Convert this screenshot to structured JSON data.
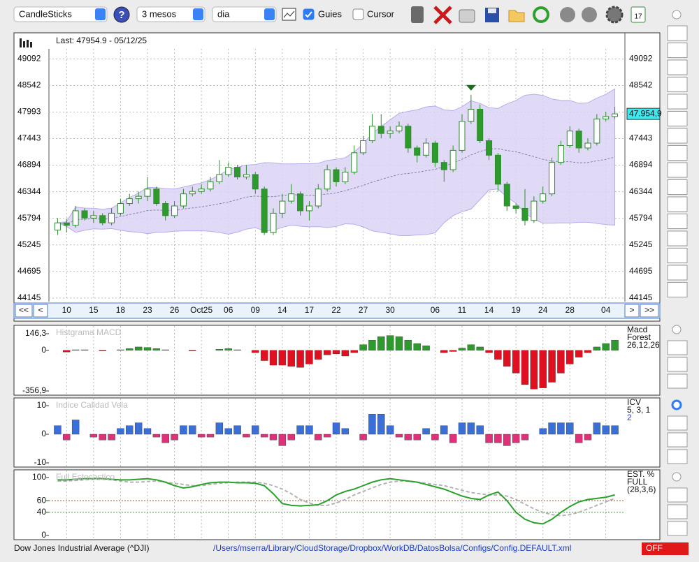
{
  "toolbar": {
    "chart_type": "CandleSticks",
    "period": "3 mesos",
    "interval": "dia",
    "guides_label": "Guies",
    "guides_checked": true,
    "cursor_label": "Cursor",
    "cursor_checked": false
  },
  "main_chart": {
    "type": "candlestick",
    "last_label": "Last: 47954.9 - 05/12/25",
    "price_tag": "47.954,9",
    "nav_buttons": [
      "<<",
      "<",
      ">",
      ">>"
    ],
    "up_color": "#ffffff",
    "down_color": "#2e9a2e",
    "outline_color": "#2e8b2e",
    "band_color": "#dcd4f6",
    "ylim": [
      44100,
      49300
    ],
    "yticks": [
      44145,
      44695,
      45245,
      45794,
      46344,
      46894,
      47443,
      47993,
      48542,
      49092
    ],
    "grid": true,
    "categories": [
      null,
      "10",
      null,
      null,
      "15",
      null,
      null,
      "18",
      null,
      null,
      "23",
      null,
      null,
      "26",
      null,
      null,
      "Oct25",
      null,
      null,
      "06",
      null,
      null,
      "09",
      null,
      null,
      "14",
      null,
      null,
      "17",
      null,
      null,
      "22",
      null,
      null,
      "27",
      null,
      null,
      "30",
      null,
      null,
      null,
      null,
      "06",
      null,
      null,
      "11",
      null,
      null,
      "14",
      null,
      null,
      "19",
      null,
      null,
      "24",
      null,
      null,
      "28",
      null,
      null,
      null,
      "04",
      null
    ],
    "candles": [
      [
        45550,
        45800,
        45450,
        45700
      ],
      [
        45700,
        45780,
        45500,
        45650
      ],
      [
        45650,
        46050,
        45600,
        45950
      ],
      [
        45950,
        46000,
        45750,
        45800
      ],
      [
        45800,
        45950,
        45700,
        45850
      ],
      [
        45850,
        45900,
        45650,
        45700
      ],
      [
        45700,
        46000,
        45650,
        45900
      ],
      [
        45900,
        46200,
        45850,
        46100
      ],
      [
        46100,
        46300,
        46050,
        46200
      ],
      [
        46200,
        46350,
        46100,
        46250
      ],
      [
        46250,
        46650,
        46150,
        46400
      ],
      [
        46400,
        46450,
        46050,
        46100
      ],
      [
        46100,
        46150,
        45750,
        45850
      ],
      [
        45850,
        46150,
        45800,
        46050
      ],
      [
        46050,
        46400,
        46000,
        46300
      ],
      [
        46300,
        46450,
        46250,
        46350
      ],
      [
        46350,
        46500,
        46300,
        46400
      ],
      [
        46400,
        46650,
        46350,
        46550
      ],
      [
        46550,
        47000,
        46500,
        46700
      ],
      [
        46700,
        46950,
        46650,
        46850
      ],
      [
        46850,
        46900,
        46600,
        46650
      ],
      [
        46650,
        46900,
        46600,
        46700
      ],
      [
        46700,
        46750,
        46300,
        46400
      ],
      [
        46400,
        46450,
        45450,
        45500
      ],
      [
        45500,
        46000,
        45450,
        45900
      ],
      [
        45900,
        46300,
        45800,
        46150
      ],
      [
        46150,
        46500,
        46100,
        46300
      ],
      [
        46300,
        46350,
        45850,
        45950
      ],
      [
        45950,
        46150,
        45750,
        46050
      ],
      [
        46050,
        46500,
        46000,
        46400
      ],
      [
        46400,
        46900,
        46350,
        46800
      ],
      [
        46800,
        46850,
        46450,
        46550
      ],
      [
        46550,
        46850,
        46500,
        46750
      ],
      [
        46750,
        47300,
        46700,
        47150
      ],
      [
        47150,
        47500,
        47100,
        47400
      ],
      [
        47400,
        47950,
        47350,
        47700
      ],
      [
        47700,
        47950,
        47450,
        47550
      ],
      [
        47550,
        47700,
        47450,
        47600
      ],
      [
        47600,
        47800,
        47550,
        47700
      ],
      [
        47700,
        47750,
        47150,
        47250
      ],
      [
        47250,
        47300,
        46950,
        47100
      ],
      [
        47100,
        47450,
        47050,
        47350
      ],
      [
        47350,
        47400,
        46850,
        46950
      ],
      [
        46950,
        47000,
        46550,
        46800
      ],
      [
        46800,
        47300,
        46750,
        47200
      ],
      [
        47200,
        47950,
        47150,
        47800
      ],
      [
        47800,
        48350,
        47750,
        48050
      ],
      [
        48050,
        48150,
        47350,
        47400
      ],
      [
        47400,
        47450,
        47000,
        47100
      ],
      [
        47100,
        47150,
        46350,
        46500
      ],
      [
        46500,
        46550,
        45950,
        46050
      ],
      [
        46050,
        46100,
        45900,
        46000
      ],
      [
        46000,
        46400,
        45650,
        45750
      ],
      [
        45750,
        46250,
        45700,
        46150
      ],
      [
        46150,
        46450,
        46100,
        46300
      ],
      [
        46300,
        47050,
        46250,
        46950
      ],
      [
        46950,
        47400,
        46900,
        47300
      ],
      [
        47300,
        47700,
        47250,
        47600
      ],
      [
        47600,
        47650,
        47150,
        47250
      ],
      [
        47250,
        47450,
        47200,
        47350
      ],
      [
        47350,
        47950,
        47300,
        47850
      ],
      [
        47850,
        48000,
        47800,
        47900
      ],
      [
        47900,
        48100,
        47850,
        47954.9
      ]
    ]
  },
  "macd": {
    "type": "bar",
    "title": "Histgrama MACD",
    "side_labels": [
      "Macd",
      "Forest",
      "26,12,26"
    ],
    "pos_color": "#2e9a2e",
    "neg_color": "#e01020",
    "ylim": [
      -356.9,
      146.3
    ],
    "yticks": [
      {
        "value": 146.3,
        "label": "146,3"
      },
      0,
      {
        "value": -356.9,
        "label": "-356,9"
      }
    ],
    "values": [
      0,
      -15,
      5,
      5,
      0,
      -5,
      0,
      5,
      15,
      30,
      25,
      15,
      5,
      0,
      0,
      -5,
      0,
      0,
      10,
      15,
      5,
      0,
      -20,
      -90,
      -130,
      -130,
      -140,
      -150,
      -120,
      -80,
      -40,
      -30,
      -50,
      -20,
      50,
      90,
      120,
      130,
      120,
      90,
      60,
      40,
      0,
      -20,
      -10,
      20,
      50,
      30,
      -20,
      -80,
      -140,
      -200,
      -300,
      -340,
      -330,
      -280,
      -200,
      -120,
      -60,
      -20,
      30,
      60,
      90
    ]
  },
  "icv": {
    "type": "bar",
    "title": "Indice Calidad Vela",
    "side_labels": [
      "ICV",
      "5, 3, 1",
      "2"
    ],
    "pos_color": "#3a6fd8",
    "neg_color": "#e0307a",
    "ylim": [
      -10,
      10
    ],
    "yticks": [
      -10,
      0,
      10
    ],
    "values": [
      3,
      -2,
      5,
      0,
      -1,
      -2,
      -2,
      2,
      3,
      4,
      2,
      -1,
      -3,
      -2,
      3,
      3,
      -1,
      -1,
      4,
      2,
      3,
      -1,
      3,
      -1,
      -2,
      -4,
      -2,
      3,
      3,
      -2,
      -1,
      4,
      2,
      0,
      -2,
      7,
      7,
      3,
      -1,
      -2,
      -2,
      2,
      -2,
      3,
      -3,
      4,
      4,
      3,
      -3,
      -3,
      -4,
      -3,
      -2,
      0,
      2,
      4,
      4,
      4,
      -3,
      -2,
      4,
      3,
      3
    ]
  },
  "stochastic": {
    "type": "line",
    "title": "Full Estocastico",
    "side_labels": [
      "EST. %",
      "FULL",
      "(28,3,6)"
    ],
    "ylim": [
      0,
      100
    ],
    "yticks": [
      0,
      40,
      60,
      100
    ],
    "ref_lines": [
      {
        "value": 60,
        "color": "#c03030"
      },
      {
        "value": 40,
        "color": "#30a030"
      }
    ],
    "series": [
      {
        "color": "#2ca02c",
        "dashed": false,
        "values": [
          96,
          96,
          97,
          98,
          98,
          98,
          97,
          96,
          96,
          97,
          98,
          96,
          92,
          86,
          82,
          84,
          88,
          91,
          92,
          92,
          91,
          91,
          90,
          86,
          72,
          55,
          52,
          51,
          52,
          53,
          60,
          70,
          76,
          80,
          86,
          92,
          96,
          98,
          96,
          94,
          92,
          88,
          84,
          80,
          74,
          68,
          64,
          62,
          70,
          75,
          60,
          40,
          28,
          22,
          20,
          28,
          40,
          50,
          58,
          62,
          64,
          66,
          70
        ]
      },
      {
        "color": "#b4b4b4",
        "dashed": true,
        "values": [
          94,
          94,
          95,
          96,
          97,
          97,
          96,
          94,
          92,
          92,
          93,
          94,
          92,
          90,
          88,
          86,
          86,
          88,
          90,
          91,
          92,
          92,
          92,
          90,
          86,
          80,
          72,
          62,
          56,
          52,
          52,
          56,
          62,
          70,
          76,
          82,
          88,
          92,
          94,
          94,
          92,
          90,
          88,
          86,
          82,
          78,
          74,
          72,
          70,
          70,
          68,
          62,
          54,
          46,
          40,
          36,
          34,
          36,
          40,
          46,
          52,
          58,
          64
        ]
      }
    ]
  },
  "footer": {
    "instrument": "Dow Jones Industrial Average (^DJI)",
    "config_path": "/Users/mserra/Library/CloudStorage/Dropbox/WorkDB/DatosBolsa/Configs/Config.DEFAULT.xml",
    "status": "OFF"
  }
}
